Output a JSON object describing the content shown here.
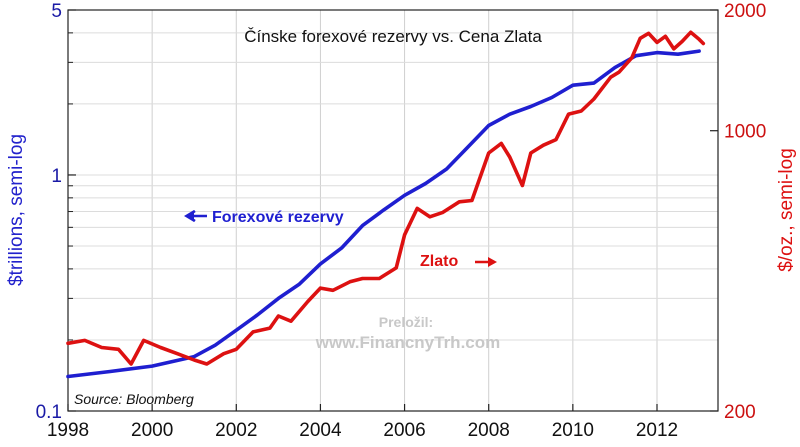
{
  "chart_data": {
    "type": "line",
    "title": "Čínske forexové rezervy vs. Cena Zlata",
    "ylabel_left": "$trillions, semi-log",
    "ylabel_right": "$/oz., semi-log",
    "x_ticks": [
      "1998",
      "2000",
      "2002",
      "2004",
      "2006",
      "2008",
      "2010",
      "2012"
    ],
    "x_range": [
      1998.0,
      2013.45
    ],
    "y_left": {
      "scale": "log",
      "range": [
        0.1,
        5
      ],
      "ticks": [
        "0.1",
        "1",
        "5"
      ]
    },
    "y_right": {
      "scale": "log",
      "range": [
        200,
        2000
      ],
      "ticks": [
        "200",
        "1000",
        "2000"
      ]
    },
    "grid": true,
    "annotations": {
      "reserves_label": "Forexové rezervy",
      "gold_label": "Zlato",
      "source": "Source:  Bloomberg",
      "watermark_line1": "Preložil:",
      "watermark_line2": "www.FinancnyTrh.com"
    },
    "series": [
      {
        "name": "Forexové rezervy",
        "axis": "left",
        "color": "#1f1fd0",
        "points": [
          [
            1998.0,
            0.14
          ],
          [
            1999.0,
            0.147
          ],
          [
            2000.0,
            0.155
          ],
          [
            2001.0,
            0.17
          ],
          [
            2001.5,
            0.19
          ],
          [
            2002.0,
            0.22
          ],
          [
            2002.5,
            0.255
          ],
          [
            2003.0,
            0.3
          ],
          [
            2003.5,
            0.345
          ],
          [
            2004.0,
            0.42
          ],
          [
            2004.5,
            0.49
          ],
          [
            2005.0,
            0.61
          ],
          [
            2005.5,
            0.71
          ],
          [
            2006.0,
            0.82
          ],
          [
            2006.5,
            0.92
          ],
          [
            2007.0,
            1.06
          ],
          [
            2007.5,
            1.31
          ],
          [
            2008.0,
            1.62
          ],
          [
            2008.5,
            1.81
          ],
          [
            2009.0,
            1.95
          ],
          [
            2009.5,
            2.13
          ],
          [
            2010.0,
            2.4
          ],
          [
            2010.5,
            2.45
          ],
          [
            2011.0,
            2.85
          ],
          [
            2011.5,
            3.2
          ],
          [
            2012.0,
            3.3
          ],
          [
            2012.5,
            3.25
          ],
          [
            2013.0,
            3.35
          ]
        ]
      },
      {
        "name": "Zlato",
        "axis": "right",
        "color": "#dd1111",
        "points": [
          [
            1998.0,
            295
          ],
          [
            1998.4,
            300
          ],
          [
            1998.8,
            288
          ],
          [
            1999.2,
            285
          ],
          [
            1999.5,
            262
          ],
          [
            1999.8,
            300
          ],
          [
            2000.2,
            288
          ],
          [
            2000.6,
            278
          ],
          [
            2001.0,
            268
          ],
          [
            2001.3,
            262
          ],
          [
            2001.7,
            278
          ],
          [
            2002.0,
            285
          ],
          [
            2002.4,
            315
          ],
          [
            2002.8,
            322
          ],
          [
            2003.0,
            345
          ],
          [
            2003.3,
            335
          ],
          [
            2003.7,
            375
          ],
          [
            2004.0,
            405
          ],
          [
            2004.3,
            400
          ],
          [
            2004.7,
            420
          ],
          [
            2005.0,
            428
          ],
          [
            2005.4,
            428
          ],
          [
            2005.8,
            455
          ],
          [
            2006.0,
            550
          ],
          [
            2006.3,
            640
          ],
          [
            2006.6,
            610
          ],
          [
            2006.9,
            625
          ],
          [
            2007.3,
            665
          ],
          [
            2007.6,
            670
          ],
          [
            2008.0,
            880
          ],
          [
            2008.3,
            930
          ],
          [
            2008.5,
            860
          ],
          [
            2008.8,
            730
          ],
          [
            2009.0,
            880
          ],
          [
            2009.3,
            920
          ],
          [
            2009.6,
            950
          ],
          [
            2009.9,
            1100
          ],
          [
            2010.2,
            1120
          ],
          [
            2010.5,
            1200
          ],
          [
            2010.9,
            1360
          ],
          [
            2011.1,
            1400
          ],
          [
            2011.4,
            1520
          ],
          [
            2011.6,
            1700
          ],
          [
            2011.8,
            1750
          ],
          [
            2012.0,
            1660
          ],
          [
            2012.2,
            1720
          ],
          [
            2012.4,
            1600
          ],
          [
            2012.6,
            1670
          ],
          [
            2012.8,
            1760
          ],
          [
            2013.0,
            1690
          ],
          [
            2013.1,
            1650
          ]
        ]
      }
    ]
  }
}
